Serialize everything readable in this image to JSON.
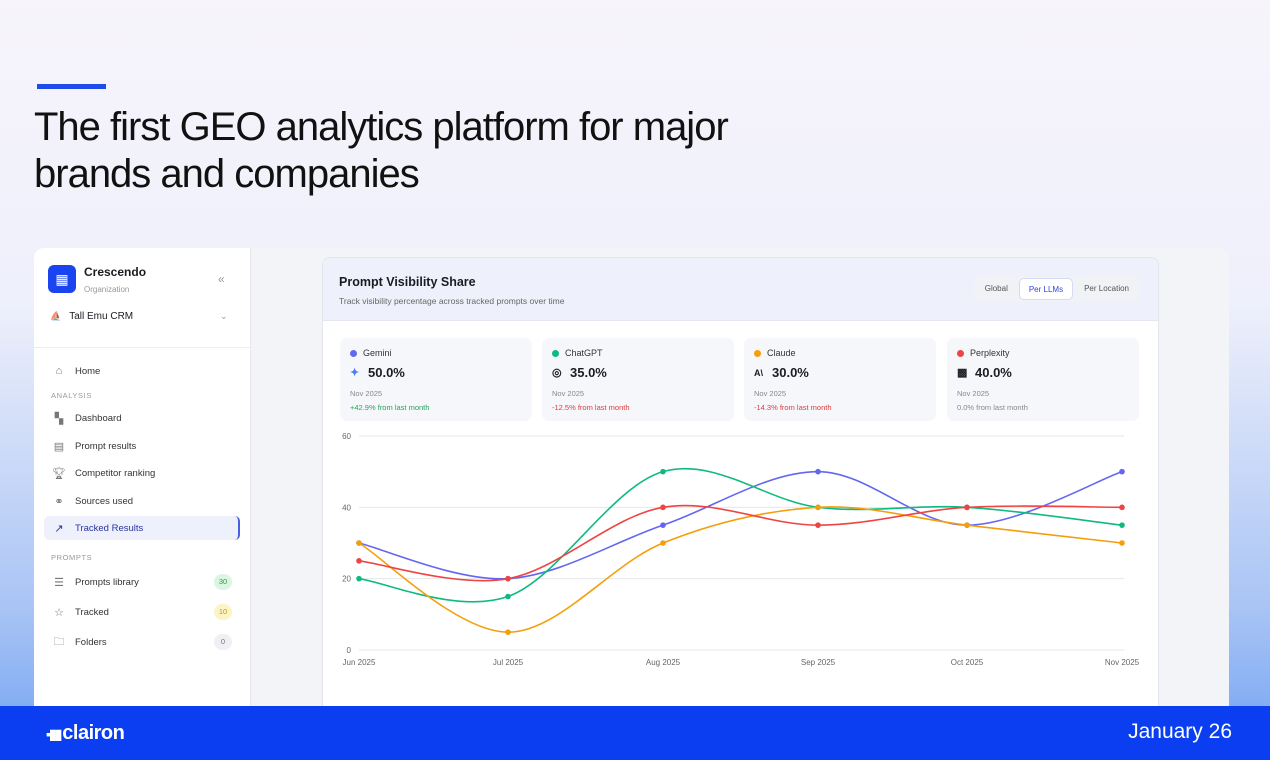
{
  "headline": "The first GEO analytics platform  for major brands and companies",
  "sidebar": {
    "org_name": "Crescendo",
    "org_sub": "Organization",
    "project": "Tall Emu CRM",
    "home": "Home",
    "analysis_label": "ANALYSIS",
    "items": [
      {
        "label": "Dashboard"
      },
      {
        "label": "Prompt results"
      },
      {
        "label": "Competitor ranking"
      },
      {
        "label": "Sources used"
      },
      {
        "label": "Tracked Results"
      }
    ],
    "prompts_label": "PROMPTS",
    "prompt_items": [
      {
        "label": "Prompts library",
        "count": "30"
      },
      {
        "label": "Tracked",
        "count": "10"
      },
      {
        "label": "Folders",
        "count": "0"
      }
    ]
  },
  "card": {
    "title": "Prompt Visibility Share",
    "subtitle": "Track visibility percentage across tracked prompts over time",
    "tabs": [
      "Global",
      "Per LLMs",
      "Per Location"
    ],
    "active_tab": "Per LLMs"
  },
  "stats": [
    {
      "name": "Gemini",
      "value": "50.0%",
      "month": "Nov 2025",
      "change": "+42.9% from last month",
      "color": "#6366f1",
      "change_color": "#22a55a"
    },
    {
      "name": "ChatGPT",
      "value": "35.0%",
      "month": "Nov 2025",
      "change": "-12.5% from last month",
      "color": "#10b981",
      "change_color": "#e03a3a"
    },
    {
      "name": "Claude",
      "value": "30.0%",
      "month": "Nov 2025",
      "change": "-14.3% from last month",
      "color": "#f59e0b",
      "change_color": "#e03a3a"
    },
    {
      "name": "Perplexity",
      "value": "40.0%",
      "month": "Nov 2025",
      "change": "0.0% from last month",
      "color": "#ef4444",
      "change_color": "#888888"
    }
  ],
  "chart_data": {
    "type": "line",
    "title": "",
    "xlabel": "",
    "ylabel": "",
    "categories": [
      "Jun 2025",
      "Jul 2025",
      "Aug 2025",
      "Sep 2025",
      "Oct 2025",
      "Nov 2025"
    ],
    "ylim": [
      0,
      60
    ],
    "yticks": [
      "0",
      "20",
      "40",
      "60"
    ],
    "grid": true,
    "series": [
      {
        "name": "Gemini",
        "color": "#6366f1",
        "values": [
          30,
          20,
          35,
          50,
          35,
          50
        ]
      },
      {
        "name": "ChatGPT",
        "color": "#10b981",
        "values": [
          20,
          15,
          50,
          40,
          40,
          35
        ]
      },
      {
        "name": "Claude",
        "color": "#f59e0b",
        "values": [
          30,
          5,
          30,
          40,
          35,
          30
        ]
      },
      {
        "name": "Perplexity",
        "color": "#ef4444",
        "values": [
          25,
          20,
          40,
          35,
          40,
          40
        ]
      }
    ]
  },
  "footer": {
    "brand": "clairon",
    "date": "January 26"
  }
}
